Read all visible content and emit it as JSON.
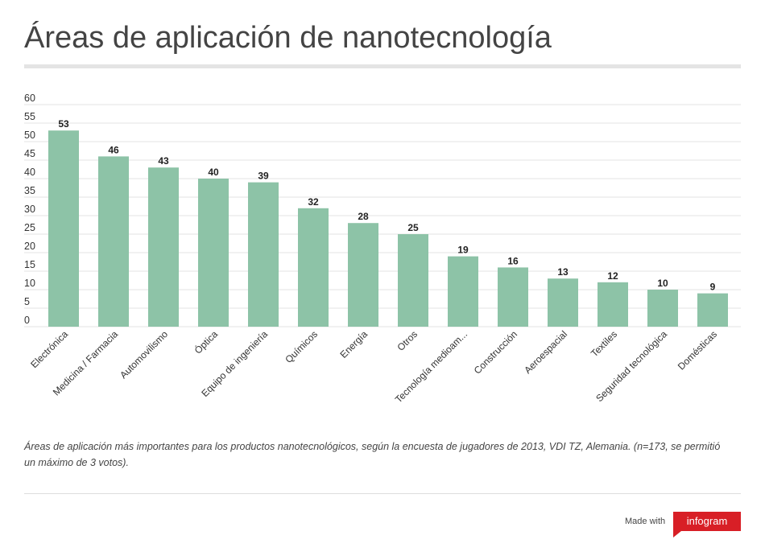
{
  "title": "Áreas de aplicación de nanotecnología",
  "caption": "Áreas de aplicación más importantes para los productos nanotecnológicos, según la encuesta de jugadores de 2013, VDI TZ, Alemania. (n=173, se permitió un máximo de 3 votos).",
  "footer": {
    "made_with": "Made with",
    "brand": "infogram"
  },
  "colors": {
    "bar": "#8dc3a7",
    "grid": "#e3e3e3",
    "brand": "#d81f26"
  },
  "chart_data": {
    "type": "bar",
    "categories": [
      "Electrónica",
      "Medicina / Farmacia",
      "Automovilismo",
      "Óptica",
      "Equipo de ingeniería",
      "Químicos",
      "Energía",
      "Otros",
      "Tecnología medioam...",
      "Construcción",
      "Aeroespacial",
      "Textiles",
      "Seguridad tecnológica",
      "Domésticas"
    ],
    "values": [
      53,
      46,
      43,
      40,
      39,
      32,
      28,
      25,
      19,
      16,
      13,
      12,
      10,
      9
    ],
    "ylim": [
      0,
      60
    ],
    "yticks": [
      0,
      5,
      10,
      15,
      20,
      25,
      30,
      35,
      40,
      45,
      50,
      55,
      60
    ],
    "grid": true,
    "data_labels": true
  }
}
